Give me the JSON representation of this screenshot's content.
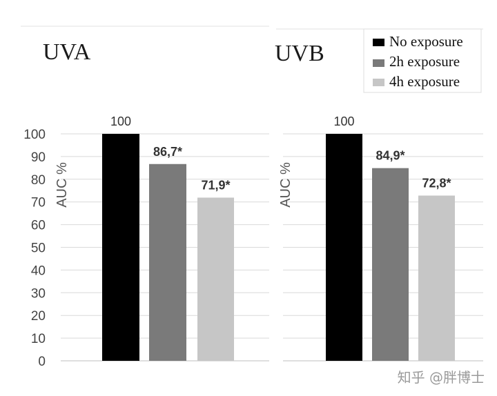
{
  "legend": {
    "items": [
      {
        "label": "No exposure",
        "color": "#000000"
      },
      {
        "label": "2h exposure",
        "color": "#7a7a7a"
      },
      {
        "label": "4h exposure",
        "color": "#c6c6c6"
      }
    ]
  },
  "watermark": "知乎 @胖博士",
  "chart_data": [
    {
      "type": "bar",
      "title": "UVA",
      "ylabel": "AUC %",
      "ylim": [
        0,
        100
      ],
      "yticks": [
        0,
        10,
        20,
        30,
        40,
        50,
        60,
        70,
        80,
        90,
        100
      ],
      "grid": true,
      "legend_position": "top-right",
      "categories": [
        "No exposure",
        "2h exposure",
        "4h exposure"
      ],
      "values": [
        100,
        86.7,
        71.9
      ],
      "data_labels": [
        "100",
        "86,7*",
        "71,9*"
      ],
      "colors": [
        "#000000",
        "#7a7a7a",
        "#c6c6c6"
      ]
    },
    {
      "type": "bar",
      "title": "UVB",
      "ylabel": "AUC %",
      "ylim": [
        0,
        100
      ],
      "grid": true,
      "categories": [
        "No exposure",
        "2h exposure",
        "4h exposure"
      ],
      "values": [
        100,
        84.9,
        72.8
      ],
      "data_labels": [
        "100",
        "84,9*",
        "72,8*"
      ],
      "colors": [
        "#000000",
        "#7a7a7a",
        "#c6c6c6"
      ]
    }
  ]
}
